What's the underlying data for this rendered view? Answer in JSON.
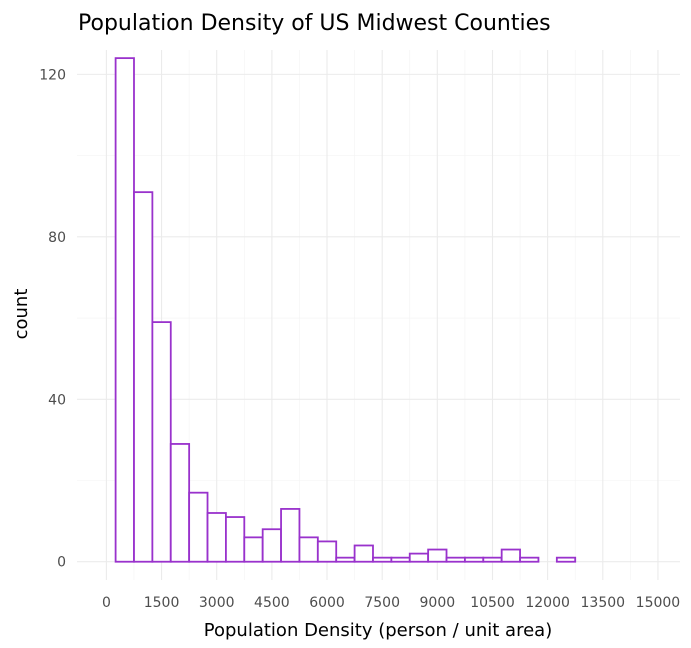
{
  "chart_data": {
    "type": "bar",
    "title": "Population Density of US Midwest Counties",
    "xlabel": "Population Density (person / unit area)",
    "ylabel": "count",
    "xlim": [
      -800,
      15600
    ],
    "ylim": [
      -4.5,
      126
    ],
    "x_ticks": [
      0,
      1500,
      3000,
      4500,
      6000,
      7500,
      9000,
      10500,
      12000,
      13500,
      15000
    ],
    "y_ticks": [
      0,
      40,
      80,
      120
    ],
    "bin_width": 500,
    "bins_start": [
      250,
      750,
      1250,
      1750,
      2250,
      2750,
      3250,
      3750,
      4250,
      4750,
      5250,
      5750,
      6250,
      6750,
      7250,
      7750,
      8250,
      8750,
      9250,
      9750,
      10250,
      10750,
      11250,
      11750,
      12250,
      12750,
      13250,
      13750,
      14250
    ],
    "values": [
      124,
      91,
      59,
      29,
      17,
      12,
      11,
      6,
      8,
      13,
      6,
      5,
      1,
      4,
      1,
      1,
      2,
      3,
      1,
      1,
      1,
      3,
      1,
      0,
      1,
      0,
      0,
      0,
      0
    ],
    "grid": true,
    "legend": "none",
    "bar_outline_color": "#9932cc",
    "bar_fill_color": "#ffffff"
  }
}
